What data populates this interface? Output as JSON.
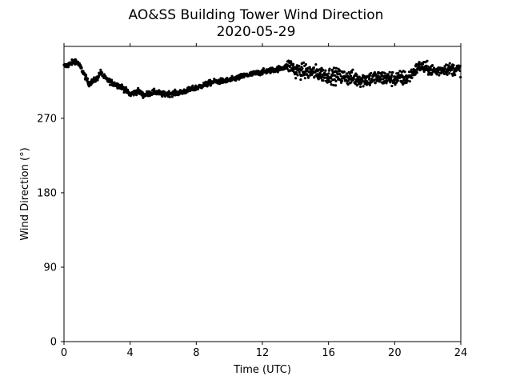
{
  "chart_data": {
    "type": "scatter",
    "title": "AO&SS Building Tower Wind Direction",
    "subtitle": "2020-05-29",
    "xlabel": "Time (UTC)",
    "ylabel": "Wind Direction (°)",
    "xlim": [
      0,
      24
    ],
    "ylim": [
      0,
      357
    ],
    "xticks": [
      0,
      4,
      8,
      12,
      16,
      20,
      24
    ],
    "yticks": [
      0,
      90,
      180,
      270
    ],
    "grid": false,
    "legend": "none",
    "marker_color": "#000000",
    "trend": [
      {
        "x": 0.0,
        "y": 333
      },
      {
        "x": 0.3,
        "y": 335
      },
      {
        "x": 0.7,
        "y": 340
      },
      {
        "x": 1.0,
        "y": 332
      },
      {
        "x": 1.5,
        "y": 312
      },
      {
        "x": 2.0,
        "y": 318
      },
      {
        "x": 2.2,
        "y": 326
      },
      {
        "x": 2.5,
        "y": 318
      },
      {
        "x": 3.0,
        "y": 312
      },
      {
        "x": 3.5,
        "y": 308
      },
      {
        "x": 4.0,
        "y": 299
      },
      {
        "x": 4.5,
        "y": 303
      },
      {
        "x": 4.8,
        "y": 298
      },
      {
        "x": 5.5,
        "y": 302
      },
      {
        "x": 6.0,
        "y": 299
      },
      {
        "x": 7.0,
        "y": 301
      },
      {
        "x": 8.0,
        "y": 307
      },
      {
        "x": 9.0,
        "y": 314
      },
      {
        "x": 10.0,
        "y": 316
      },
      {
        "x": 11.0,
        "y": 322
      },
      {
        "x": 12.0,
        "y": 326
      },
      {
        "x": 13.0,
        "y": 330
      },
      {
        "x": 13.7,
        "y": 334
      },
      {
        "x": 14.0,
        "y": 328
      },
      {
        "x": 15.0,
        "y": 326
      },
      {
        "x": 16.0,
        "y": 322
      },
      {
        "x": 17.0,
        "y": 320
      },
      {
        "x": 18.0,
        "y": 317
      },
      {
        "x": 19.0,
        "y": 319
      },
      {
        "x": 20.0,
        "y": 318
      },
      {
        "x": 20.8,
        "y": 319
      },
      {
        "x": 21.5,
        "y": 333
      },
      {
        "x": 22.0,
        "y": 330
      },
      {
        "x": 22.5,
        "y": 327
      },
      {
        "x": 23.0,
        "y": 330
      },
      {
        "x": 24.0,
        "y": 329
      }
    ]
  }
}
